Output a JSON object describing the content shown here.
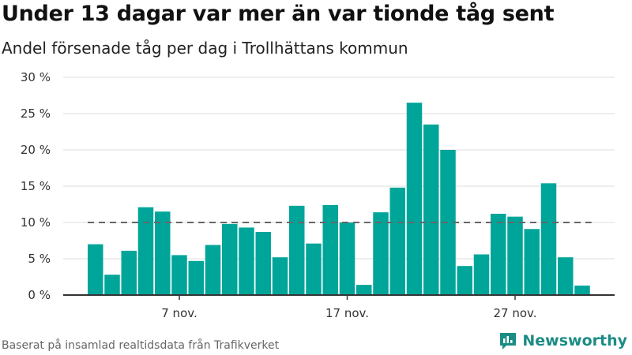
{
  "header": {
    "title": "Under 13 dagar var mer än var tionde tåg sent",
    "subtitle": "Andel försenade tåg per dag i Trollhättans kommun"
  },
  "footer": {
    "source": "Baserat på insamlad realtidsdata från Trafikverket",
    "brand": "Newsworthy"
  },
  "colors": {
    "bar": "#00a59a",
    "reference_line": "#666666",
    "grid": "#dddddd",
    "axis": "#333333",
    "brand": "#1c8c85"
  },
  "chart_data": {
    "type": "bar",
    "categories": [
      "2 nov.",
      "3 nov.",
      "4 nov.",
      "5 nov.",
      "6 nov.",
      "7 nov.",
      "8 nov.",
      "9 nov.",
      "10 nov.",
      "11 nov.",
      "12 nov.",
      "13 nov.",
      "14 nov.",
      "15 nov.",
      "16 nov.",
      "17 nov.",
      "18 nov.",
      "19 nov.",
      "20 nov.",
      "21 nov.",
      "22 nov.",
      "23 nov.",
      "24 nov.",
      "25 nov.",
      "26 nov.",
      "27 nov.",
      "28 nov.",
      "29 nov.",
      "30 nov.",
      "1 dec."
    ],
    "values": [
      7.0,
      2.8,
      6.1,
      12.1,
      11.5,
      5.5,
      4.7,
      6.9,
      9.8,
      9.3,
      8.7,
      5.2,
      12.3,
      7.1,
      12.4,
      10.0,
      1.4,
      11.4,
      14.8,
      26.5,
      23.5,
      20.0,
      4.0,
      5.6,
      11.2,
      10.8,
      9.1,
      15.4,
      5.2,
      1.3
    ],
    "x_ticks": [
      "7 nov.",
      "17 nov.",
      "27 nov."
    ],
    "x_tick_categories": [
      "7 nov.",
      "17 nov.",
      "27 nov."
    ],
    "y_ticks": [
      "0 %",
      "5 %",
      "10 %",
      "15 %",
      "20 %",
      "25 %",
      "30 %"
    ],
    "ylim": [
      0,
      30
    ],
    "reference_line": 10,
    "grid": true,
    "legend": "none"
  }
}
